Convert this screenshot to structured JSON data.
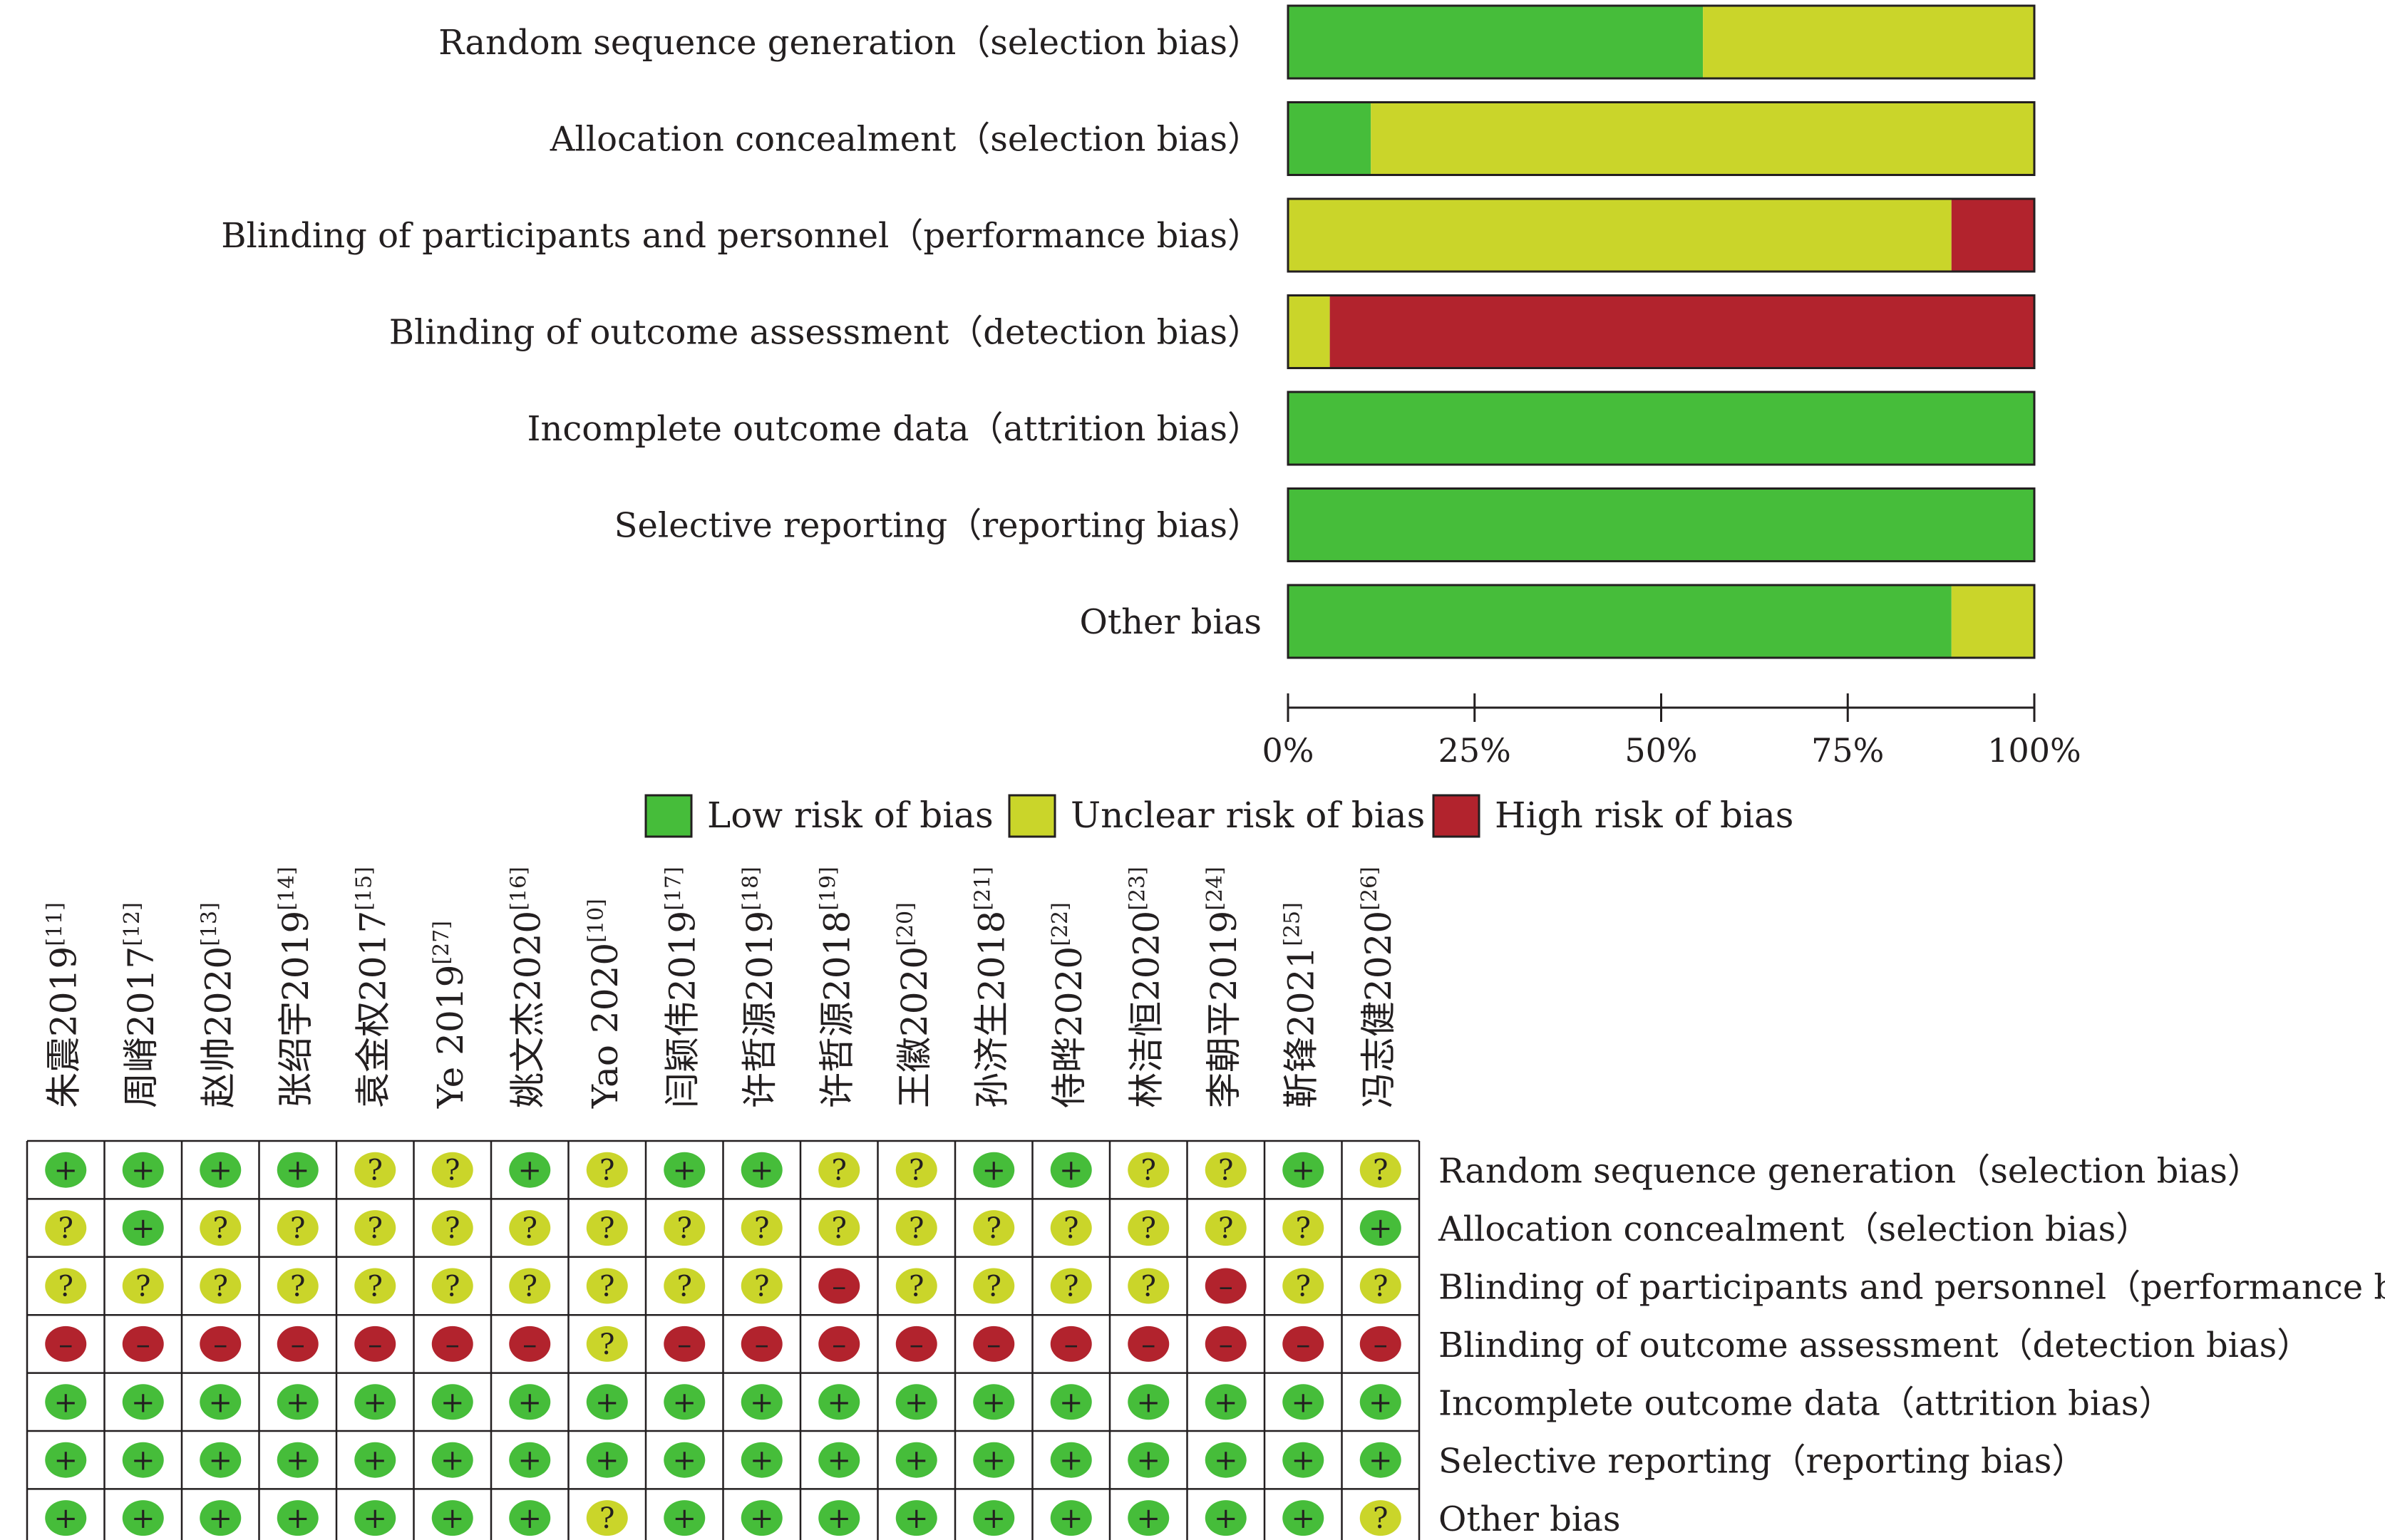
{
  "colors": {
    "low": "#46bd3a",
    "unclear": "#cad52a",
    "high": "#b2232d",
    "border": "#231f20"
  },
  "domains": [
    "Random sequence generation（selection bias）",
    "Allocation concealment（selection bias）",
    "Blinding of participants and personnel（performance bias）",
    "Blinding of outcome assessment（detection bias）",
    "Incomplete outcome data（attrition bias）",
    "Selective reporting（reporting bias）",
    "Other bias"
  ],
  "chart_data": [
    {
      "type": "bar",
      "orientation": "horizontal",
      "stacked": true,
      "unit": "percent",
      "categories": [
        "Random sequence generation（selection bias）",
        "Allocation concealment（selection bias）",
        "Blinding of participants and personnel（performance bias）",
        "Blinding of outcome assessment（detection bias）",
        "Incomplete outcome data（attrition bias）",
        "Selective reporting（reporting bias）",
        "Other bias"
      ],
      "series": [
        {
          "name": "Low risk of bias",
          "key": "low",
          "values": [
            55.6,
            11.1,
            0,
            0,
            100,
            100,
            88.9
          ]
        },
        {
          "name": "Unclear risk of bias",
          "key": "unclear",
          "values": [
            44.4,
            88.9,
            88.9,
            5.6,
            0,
            0,
            11.1
          ]
        },
        {
          "name": "High risk of bias",
          "key": "high",
          "values": [
            0,
            0,
            11.1,
            94.4,
            0,
            0,
            0
          ]
        }
      ],
      "xlim": [
        0,
        100
      ],
      "xticks": [
        "0%",
        "25%",
        "50%",
        "75%",
        "100%"
      ],
      "legend_position": "bottom",
      "grid": false
    },
    {
      "type": "table",
      "columns": [
        {
          "name": "朱震",
          "year": "2019",
          "ref": "[11]"
        },
        {
          "name": "周嵴",
          "year": "2017",
          "ref": "[12]"
        },
        {
          "name": "赵帅",
          "year": "2020",
          "ref": "[13]"
        },
        {
          "name": "张绍宇",
          "year": "2019",
          "ref": "[14]"
        },
        {
          "name": "袁金权",
          "year": "2017",
          "ref": "[15]"
        },
        {
          "name": "Ye ",
          "year": "2019",
          "ref": "[27]"
        },
        {
          "name": "姚文杰",
          "year": "2020",
          "ref": "[16]"
        },
        {
          "name": "Yao ",
          "year": "2020",
          "ref": "[10]"
        },
        {
          "name": "闫颖伟",
          "year": "2019",
          "ref": "[17]"
        },
        {
          "name": "许哲源",
          "year": "2019",
          "ref": "[18]"
        },
        {
          "name": "许哲源",
          "year": "2018",
          "ref": "[19]"
        },
        {
          "name": "王徽",
          "year": "2020",
          "ref": "[20]"
        },
        {
          "name": "孙济生",
          "year": "2018",
          "ref": "[21]"
        },
        {
          "name": "侍晔",
          "year": "2020",
          "ref": "[22]"
        },
        {
          "name": "林洁恒",
          "year": "2020",
          "ref": "[23]"
        },
        {
          "name": "李朝平",
          "year": "2019",
          "ref": "[24]"
        },
        {
          "name": "靳锋",
          "year": "2021",
          "ref": "[25]"
        },
        {
          "name": "冯志健",
          "year": "2020",
          "ref": "[26]"
        }
      ],
      "rows": [
        [
          "+",
          "+",
          "+",
          "+",
          "?",
          "?",
          "+",
          "?",
          "+",
          "+",
          "?",
          "?",
          "+",
          "+",
          "?",
          "?",
          "+",
          "?"
        ],
        [
          "?",
          "+",
          "?",
          "?",
          "?",
          "?",
          "?",
          "?",
          "?",
          "?",
          "?",
          "?",
          "?",
          "?",
          "?",
          "?",
          "?",
          "+"
        ],
        [
          "?",
          "?",
          "?",
          "?",
          "?",
          "?",
          "?",
          "?",
          "?",
          "?",
          "-",
          "?",
          "?",
          "?",
          "?",
          "-",
          "?",
          "?"
        ],
        [
          "-",
          "-",
          "-",
          "-",
          "-",
          "-",
          "-",
          "?",
          "-",
          "-",
          "-",
          "-",
          "-",
          "-",
          "-",
          "-",
          "-",
          "-"
        ],
        [
          "+",
          "+",
          "+",
          "+",
          "+",
          "+",
          "+",
          "+",
          "+",
          "+",
          "+",
          "+",
          "+",
          "+",
          "+",
          "+",
          "+",
          "+"
        ],
        [
          "+",
          "+",
          "+",
          "+",
          "+",
          "+",
          "+",
          "+",
          "+",
          "+",
          "+",
          "+",
          "+",
          "+",
          "+",
          "+",
          "+",
          "+"
        ],
        [
          "+",
          "+",
          "+",
          "+",
          "+",
          "+",
          "+",
          "?",
          "+",
          "+",
          "+",
          "+",
          "+",
          "+",
          "+",
          "+",
          "+",
          "?"
        ]
      ]
    }
  ]
}
